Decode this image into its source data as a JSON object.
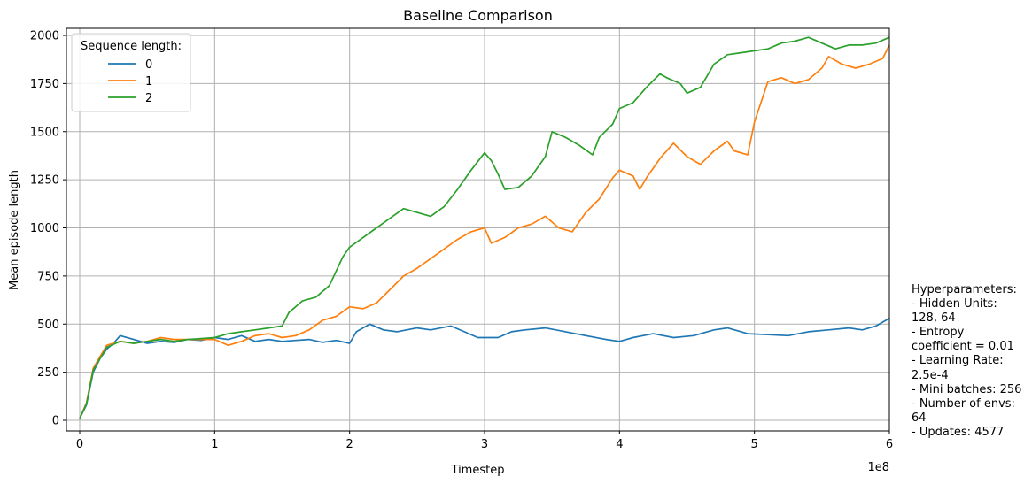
{
  "chart_data": {
    "type": "line",
    "title": "Baseline Comparison",
    "xlabel": "Timestep",
    "ylabel": "Mean episode length",
    "x_offset_label": "1e8",
    "xlim": [
      0,
      6
    ],
    "ylim": [
      0,
      2000
    ],
    "x_ticks": [
      0,
      1,
      2,
      3,
      4,
      5,
      6
    ],
    "x_tick_labels": [
      "0",
      "1",
      "2",
      "3",
      "4",
      "5",
      "6"
    ],
    "y_ticks": [
      0,
      250,
      500,
      750,
      1000,
      1250,
      1500,
      1750,
      2000
    ],
    "y_tick_labels": [
      "0",
      "250",
      "500",
      "750",
      "1000",
      "1250",
      "1500",
      "1750",
      "2000"
    ],
    "grid": true,
    "legend": {
      "title": "Sequence length:",
      "location": "upper left",
      "entries": [
        "0",
        "1",
        "2"
      ]
    },
    "series": [
      {
        "name": "0",
        "color": "#1f77b4",
        "points": [
          [
            0,
            10
          ],
          [
            0.05,
            80
          ],
          [
            0.1,
            250
          ],
          [
            0.15,
            320
          ],
          [
            0.2,
            370
          ],
          [
            0.25,
            400
          ],
          [
            0.3,
            440
          ],
          [
            0.4,
            420
          ],
          [
            0.5,
            400
          ],
          [
            0.6,
            410
          ],
          [
            0.7,
            405
          ],
          [
            0.8,
            420
          ],
          [
            0.9,
            415
          ],
          [
            1.0,
            430
          ],
          [
            1.1,
            420
          ],
          [
            1.2,
            440
          ],
          [
            1.3,
            410
          ],
          [
            1.4,
            420
          ],
          [
            1.5,
            410
          ],
          [
            1.6,
            415
          ],
          [
            1.7,
            420
          ],
          [
            1.8,
            405
          ],
          [
            1.9,
            415
          ],
          [
            2.0,
            400
          ],
          [
            2.05,
            460
          ],
          [
            2.15,
            500
          ],
          [
            2.25,
            470
          ],
          [
            2.35,
            460
          ],
          [
            2.5,
            480
          ],
          [
            2.6,
            470
          ],
          [
            2.75,
            490
          ],
          [
            2.85,
            460
          ],
          [
            2.95,
            430
          ],
          [
            3.1,
            430
          ],
          [
            3.2,
            460
          ],
          [
            3.3,
            470
          ],
          [
            3.45,
            480
          ],
          [
            3.6,
            460
          ],
          [
            3.75,
            440
          ],
          [
            3.9,
            420
          ],
          [
            4.0,
            410
          ],
          [
            4.1,
            430
          ],
          [
            4.25,
            450
          ],
          [
            4.4,
            430
          ],
          [
            4.55,
            440
          ],
          [
            4.7,
            470
          ],
          [
            4.8,
            480
          ],
          [
            4.95,
            450
          ],
          [
            5.1,
            445
          ],
          [
            5.25,
            440
          ],
          [
            5.4,
            460
          ],
          [
            5.55,
            470
          ],
          [
            5.7,
            480
          ],
          [
            5.8,
            470
          ],
          [
            5.9,
            490
          ],
          [
            6.0,
            530
          ]
        ]
      },
      {
        "name": "1",
        "color": "#ff7f0e",
        "points": [
          [
            0,
            10
          ],
          [
            0.05,
            90
          ],
          [
            0.1,
            270
          ],
          [
            0.15,
            330
          ],
          [
            0.2,
            390
          ],
          [
            0.3,
            410
          ],
          [
            0.4,
            400
          ],
          [
            0.5,
            410
          ],
          [
            0.6,
            430
          ],
          [
            0.7,
            420
          ],
          [
            0.8,
            420
          ],
          [
            0.9,
            420
          ],
          [
            1.0,
            420
          ],
          [
            1.1,
            390
          ],
          [
            1.2,
            410
          ],
          [
            1.3,
            440
          ],
          [
            1.4,
            450
          ],
          [
            1.5,
            430
          ],
          [
            1.6,
            440
          ],
          [
            1.7,
            470
          ],
          [
            1.8,
            520
          ],
          [
            1.9,
            540
          ],
          [
            2.0,
            590
          ],
          [
            2.1,
            580
          ],
          [
            2.2,
            610
          ],
          [
            2.3,
            680
          ],
          [
            2.4,
            750
          ],
          [
            2.5,
            790
          ],
          [
            2.6,
            840
          ],
          [
            2.7,
            890
          ],
          [
            2.8,
            940
          ],
          [
            2.9,
            980
          ],
          [
            3.0,
            1000
          ],
          [
            3.05,
            920
          ],
          [
            3.15,
            950
          ],
          [
            3.25,
            1000
          ],
          [
            3.35,
            1020
          ],
          [
            3.45,
            1060
          ],
          [
            3.55,
            1000
          ],
          [
            3.65,
            980
          ],
          [
            3.75,
            1080
          ],
          [
            3.85,
            1150
          ],
          [
            3.95,
            1260
          ],
          [
            4.0,
            1300
          ],
          [
            4.1,
            1270
          ],
          [
            4.15,
            1200
          ],
          [
            4.2,
            1260
          ],
          [
            4.3,
            1360
          ],
          [
            4.4,
            1440
          ],
          [
            4.5,
            1370
          ],
          [
            4.6,
            1330
          ],
          [
            4.7,
            1400
          ],
          [
            4.8,
            1450
          ],
          [
            4.85,
            1400
          ],
          [
            4.95,
            1380
          ],
          [
            5.0,
            1550
          ],
          [
            5.1,
            1760
          ],
          [
            5.2,
            1780
          ],
          [
            5.3,
            1750
          ],
          [
            5.4,
            1770
          ],
          [
            5.5,
            1830
          ],
          [
            5.55,
            1890
          ],
          [
            5.65,
            1850
          ],
          [
            5.75,
            1830
          ],
          [
            5.85,
            1850
          ],
          [
            5.95,
            1880
          ],
          [
            6.0,
            1950
          ]
        ]
      },
      {
        "name": "2",
        "color": "#2ca02c",
        "points": [
          [
            0,
            10
          ],
          [
            0.05,
            85
          ],
          [
            0.1,
            260
          ],
          [
            0.15,
            320
          ],
          [
            0.2,
            380
          ],
          [
            0.3,
            410
          ],
          [
            0.4,
            400
          ],
          [
            0.5,
            410
          ],
          [
            0.6,
            420
          ],
          [
            0.7,
            410
          ],
          [
            0.8,
            420
          ],
          [
            0.9,
            425
          ],
          [
            1.0,
            430
          ],
          [
            1.1,
            450
          ],
          [
            1.2,
            460
          ],
          [
            1.3,
            470
          ],
          [
            1.4,
            480
          ],
          [
            1.5,
            490
          ],
          [
            1.55,
            560
          ],
          [
            1.65,
            620
          ],
          [
            1.75,
            640
          ],
          [
            1.85,
            700
          ],
          [
            1.95,
            850
          ],
          [
            2.0,
            900
          ],
          [
            2.1,
            950
          ],
          [
            2.2,
            1000
          ],
          [
            2.3,
            1050
          ],
          [
            2.4,
            1100
          ],
          [
            2.5,
            1080
          ],
          [
            2.6,
            1060
          ],
          [
            2.7,
            1110
          ],
          [
            2.8,
            1200
          ],
          [
            2.9,
            1300
          ],
          [
            3.0,
            1390
          ],
          [
            3.05,
            1350
          ],
          [
            3.1,
            1280
          ],
          [
            3.15,
            1200
          ],
          [
            3.25,
            1210
          ],
          [
            3.35,
            1270
          ],
          [
            3.45,
            1370
          ],
          [
            3.5,
            1500
          ],
          [
            3.6,
            1470
          ],
          [
            3.7,
            1430
          ],
          [
            3.8,
            1380
          ],
          [
            3.85,
            1470
          ],
          [
            3.95,
            1540
          ],
          [
            4.0,
            1620
          ],
          [
            4.1,
            1650
          ],
          [
            4.2,
            1730
          ],
          [
            4.3,
            1800
          ],
          [
            4.35,
            1780
          ],
          [
            4.45,
            1750
          ],
          [
            4.5,
            1700
          ],
          [
            4.6,
            1730
          ],
          [
            4.7,
            1850
          ],
          [
            4.8,
            1900
          ],
          [
            4.9,
            1910
          ],
          [
            5.0,
            1920
          ],
          [
            5.1,
            1930
          ],
          [
            5.2,
            1960
          ],
          [
            5.3,
            1970
          ],
          [
            5.4,
            1990
          ],
          [
            5.5,
            1960
          ],
          [
            5.6,
            1930
          ],
          [
            5.7,
            1950
          ],
          [
            5.8,
            1950
          ],
          [
            5.9,
            1960
          ],
          [
            6.0,
            1990
          ]
        ]
      }
    ]
  },
  "side_text": [
    "Hyperparameters:",
    "- Hidden Units:",
    "128, 64",
    "- Entropy",
    "coefficient = 0.01",
    "- Learning Rate:",
    "2.5e-4",
    "- Mini batches: 256",
    "- Number of envs:",
    "64",
    "- Updates: 4577"
  ]
}
